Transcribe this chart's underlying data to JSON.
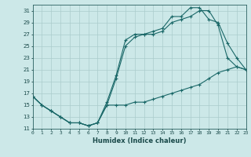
{
  "xlabel": "Humidex (Indice chaleur)",
  "bg_color": "#cce8e8",
  "grid_color": "#aacccc",
  "line_color": "#1a6868",
  "xlim": [
    0,
    23
  ],
  "ylim": [
    11,
    32
  ],
  "yticks": [
    11,
    13,
    15,
    17,
    19,
    21,
    23,
    25,
    27,
    29,
    31
  ],
  "xticks": [
    0,
    1,
    2,
    3,
    4,
    5,
    6,
    7,
    8,
    9,
    10,
    11,
    12,
    13,
    14,
    15,
    16,
    17,
    18,
    19,
    20,
    21,
    22,
    23
  ],
  "line_upper_x": [
    0,
    1,
    2,
    3,
    4,
    5,
    6,
    7,
    8,
    9,
    10,
    11,
    12,
    13,
    14,
    15,
    16,
    17,
    18,
    19,
    20,
    21,
    22,
    23
  ],
  "line_upper_y": [
    16.5,
    15,
    14,
    13,
    12,
    12,
    11.5,
    12,
    15.5,
    20,
    26,
    27,
    27,
    27.5,
    28,
    30,
    30,
    31.5,
    31.5,
    29.5,
    29,
    25.5,
    23,
    21
  ],
  "line_mid_x": [
    0,
    1,
    2,
    3,
    4,
    5,
    6,
    7,
    8,
    9,
    10,
    11,
    12,
    13,
    14,
    15,
    16,
    17,
    18,
    19,
    20,
    21,
    22,
    23
  ],
  "line_mid_y": [
    16.5,
    15,
    14,
    13,
    12,
    12,
    11.5,
    12,
    15,
    19.5,
    25,
    26.5,
    27,
    27,
    27.5,
    29,
    29.5,
    30,
    31,
    31,
    28.5,
    23,
    21.5,
    21
  ],
  "line_lower_x": [
    0,
    1,
    2,
    3,
    4,
    5,
    6,
    7,
    8,
    9,
    10,
    11,
    12,
    13,
    14,
    15,
    16,
    17,
    18,
    19,
    20,
    21,
    22,
    23
  ],
  "line_lower_y": [
    16.5,
    15,
    14,
    13,
    12,
    12,
    11.5,
    12,
    15,
    15,
    15,
    15.5,
    15.5,
    16,
    16.5,
    17,
    17.5,
    18,
    18.5,
    19.5,
    20.5,
    21,
    21.5,
    21
  ]
}
